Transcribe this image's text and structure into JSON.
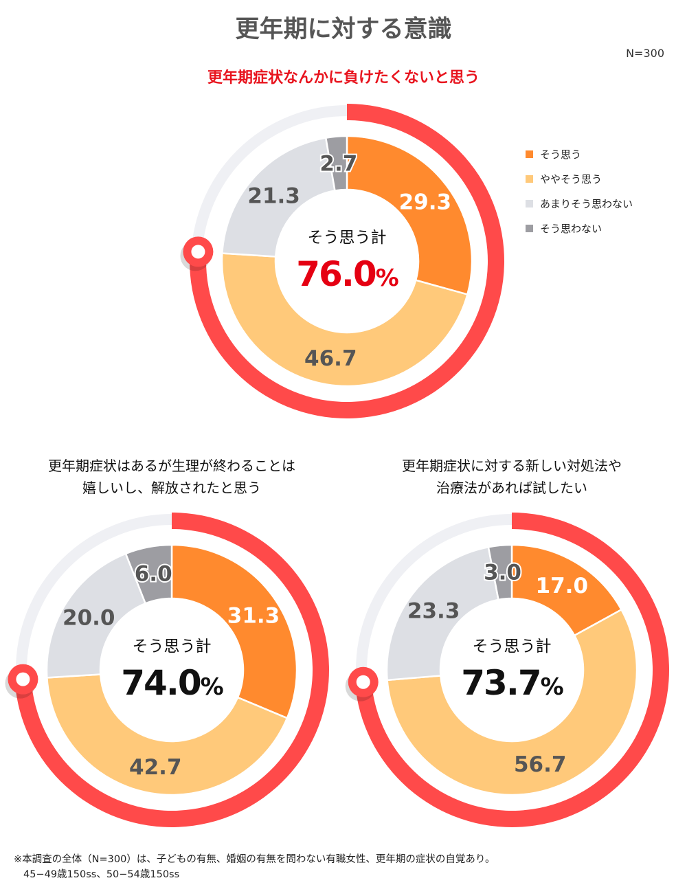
{
  "title": "更年期に対する意識",
  "n_label": "N=300",
  "colors": {
    "agree": "#FF8A2E",
    "somewhat_agree": "#FFC97A",
    "not_really": "#DDDFE4",
    "disagree": "#9D9DA2",
    "total_ring": "#FF4A4A",
    "ring_bg": "#EFF0F4",
    "highlight_text": "#E50012"
  },
  "legend": [
    {
      "label": "そう思う",
      "color": "#FF8A2E"
    },
    {
      "label": "ややそう思う",
      "color": "#FFC97A"
    },
    {
      "label": "あまりそう思わない",
      "color": "#DDDFE4"
    },
    {
      "label": "そう思わない",
      "color": "#9D9DA2"
    }
  ],
  "chart_data": [
    {
      "type": "donut",
      "title": "更年期症状なんかに負けたくないと思う",
      "categories": [
        "そう思う",
        "ややそう思う",
        "あまりそう思わない",
        "そう思わない"
      ],
      "values": [
        29.3,
        46.7,
        21.3,
        2.7
      ],
      "total_label": "そう思う計",
      "total_value": "76.0",
      "total_unit": "%",
      "total_ring_percent": 76.0
    },
    {
      "type": "donut",
      "title_lines": [
        "更年期症状はあるが生理が終わることは",
        "嬉しいし、解放されたと思う"
      ],
      "categories": [
        "そう思う",
        "ややそう思う",
        "あまりそう思わない",
        "そう思わない"
      ],
      "values": [
        31.3,
        42.7,
        20.0,
        6.0
      ],
      "total_label": "そう思う計",
      "total_value": "74.0",
      "total_unit": "%",
      "total_ring_percent": 74.0
    },
    {
      "type": "donut",
      "title_lines": [
        "更年期症状に対する新しい対処法や",
        "治療法があれば試したい"
      ],
      "categories": [
        "そう思う",
        "ややそう思う",
        "あまりそう思わない",
        "そう思わない"
      ],
      "values": [
        17.0,
        56.7,
        23.3,
        3.0
      ],
      "total_label": "そう思う計",
      "total_value": "73.7",
      "total_unit": "%",
      "total_ring_percent": 73.7
    }
  ],
  "footnote": [
    "※本調査の全体（N=300）は、子どもの有無、婚姻の有無を問わない有職女性、更年期の症状の自覚あり。",
    "45−49歳150ss、50−54歳150ss"
  ]
}
